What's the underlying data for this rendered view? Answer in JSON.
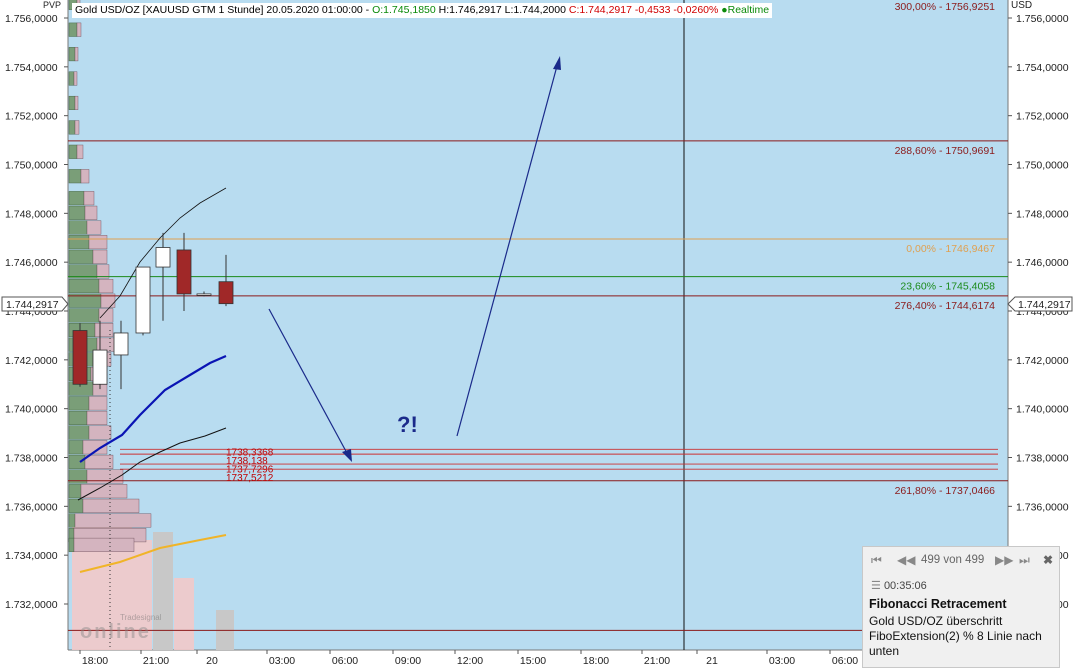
{
  "header": {
    "pvp_label": "PVP",
    "instrument": "Gold USD/OZ [XAUUSD GTM 1 Stunde]",
    "datetime": "20.05.2020 01:00:00",
    "open": "O:1.745,1850",
    "high": "H:1.746,2917",
    "low": "L:1.744,2000",
    "close": "C:1.744,2917",
    "change": "-0,4533",
    "change_pct": "-0,0260%",
    "realtime": "Realtime",
    "currency_right": "USD"
  },
  "colors": {
    "plot_bg": "#b8dcf0",
    "volume_profile_up": "#7a9e78",
    "volume_profile_down": "#d4b4bf",
    "candle_up": "#ffffff",
    "candle_down": "#a02828",
    "ma_blue": "#0a14b4",
    "ma_orange": "#f0b428",
    "fibo_line": "#8b1a1a",
    "fibo_zero": "#e0a050",
    "fibo_236": "#1a8a1a",
    "arrow": "#1a2a8a"
  },
  "price_axis": {
    "ticks": [
      "1.756,0000",
      "1.754,0000",
      "1.752,0000",
      "1.750,0000",
      "1.748,0000",
      "1.746,0000",
      "1.744,0000",
      "1.742,0000",
      "1.740,0000",
      "1.738,0000",
      "1.736,0000",
      "1.734,0000",
      "1.732,0000"
    ],
    "tick_values": [
      1756,
      1754,
      1752,
      1750,
      1748,
      1746,
      1744,
      1742,
      1740,
      1738,
      1736,
      1734,
      1732
    ],
    "current_price_label": "1.744,2917"
  },
  "time_axis": {
    "labels": [
      "18:00",
      "21:00",
      "20",
      "03:00",
      "06:00",
      "09:00",
      "12:00",
      "15:00",
      "18:00",
      "21:00",
      "21",
      "03:00",
      "06:00"
    ]
  },
  "chart_data": {
    "type": "line",
    "title": "Gold USD/OZ [XAUUSD GTM 1 Stunde]",
    "ylim": [
      1730.5,
      1756.8
    ],
    "candles": [
      {
        "open": 1743.2,
        "close": 1741.0,
        "high": 1743.5,
        "low": 1740.9
      },
      {
        "open": 1741.0,
        "close": 1742.4,
        "high": 1743.6,
        "low": 1740.8
      },
      {
        "open": 1742.2,
        "close": 1743.1,
        "high": 1743.6,
        "low": 1740.8
      },
      {
        "open": 1743.1,
        "close": 1745.8,
        "high": 1745.8,
        "low": 1743.0
      },
      {
        "open": 1745.8,
        "close": 1746.6,
        "high": 1747.2,
        "low": 1743.6
      },
      {
        "open": 1746.5,
        "close": 1744.7,
        "high": 1747.2,
        "low": 1744.0
      },
      {
        "open": 1744.7,
        "close": 1744.7,
        "high": 1744.8,
        "low": 1744.6
      },
      {
        "open": 1745.2,
        "close": 1744.3,
        "high": 1746.3,
        "low": 1744.2
      }
    ],
    "fibonacci_levels": [
      {
        "label": "300,00% - 1756,9251",
        "value": 1756.9251
      },
      {
        "label": "288,60% - 1750,9691",
        "value": 1750.9691
      },
      {
        "label": "0,00% - 1746,9467",
        "value": 1746.9467
      },
      {
        "label": "23,60% - 1745,4058",
        "value": 1745.4058
      },
      {
        "label": "276,40% - 1744,6174",
        "value": 1744.6174
      },
      {
        "label": "261,80% - 1737,0466",
        "value": 1737.0466
      }
    ],
    "support_levels": [
      {
        "label": "1738,3368",
        "value": 1738.3368
      },
      {
        "label": "1738,138",
        "value": 1738.138
      },
      {
        "label": "1737,7296",
        "value": 1737.7296
      },
      {
        "label": "1737,5212",
        "value": 1737.5212
      }
    ],
    "annotation": "?!"
  },
  "watermark": {
    "brand": "Tradesignal",
    "text": "online"
  },
  "alert_panel": {
    "counter": "499 von 499",
    "time": "00:35:06",
    "title": "Fibonacci Retracement",
    "message": "Gold USD/OZ überschritt FiboExtension(2) % 8 Linie nach unten"
  }
}
